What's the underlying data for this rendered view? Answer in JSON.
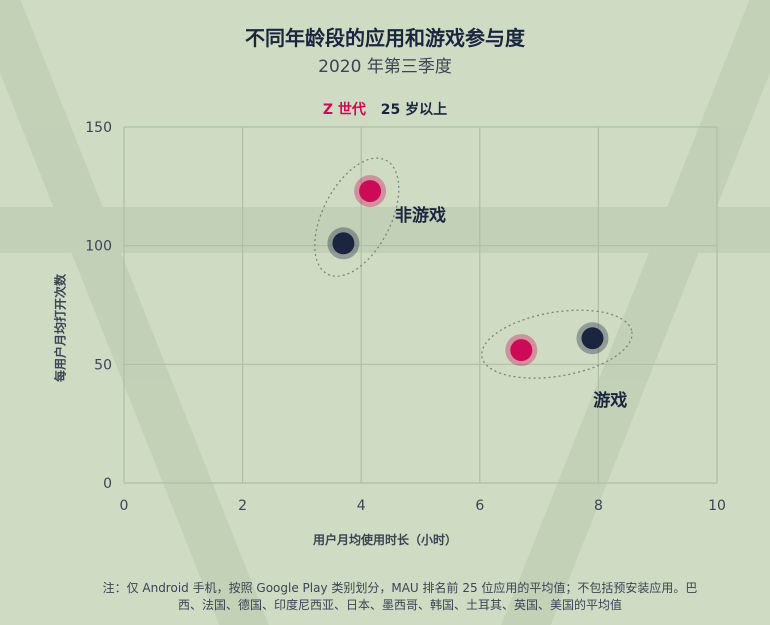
{
  "colors": {
    "background": "#cfdcc3",
    "grid": "#aebfa6",
    "z_gen": "#cc0a55",
    "age25": "#1b2540",
    "text": "#3b4556"
  },
  "chart_data": {
    "type": "scatter",
    "title": "不同年龄段的应用和游戏参与度",
    "subtitle": "2020 年第三季度",
    "xlabel": "用户月均使用时长（小时）",
    "ylabel": "每用户月均打开次数",
    "xlim": [
      0,
      10
    ],
    "ylim": [
      0,
      150
    ],
    "x_ticks": [
      "0",
      "2",
      "4",
      "6",
      "8",
      "10"
    ],
    "y_ticks": [
      "0",
      "50",
      "100",
      "150"
    ],
    "grid": true,
    "legend_position": "top-center",
    "series": [
      {
        "name": "Z 世代",
        "color": "#cc0a55",
        "points": [
          {
            "x": 4.15,
            "y": 123
          },
          {
            "x": 6.7,
            "y": 56
          }
        ]
      },
      {
        "name": "25 岁以上",
        "color": "#1b2540",
        "points": [
          {
            "x": 3.7,
            "y": 101
          },
          {
            "x": 7.9,
            "y": 61
          }
        ]
      }
    ],
    "annotations": [
      {
        "label": "非游戏",
        "x": 5.0,
        "y": 113
      },
      {
        "label": "游戏",
        "x": 8.2,
        "y": 35
      }
    ]
  },
  "footnote": "注：仅 Android 手机，按照 Google Play 类别划分，MAU 排名前 25 位应用的平均值；不包括预安装应用。巴西、法国、德国、印度尼西亚、日本、墨西哥、韩国、土耳其、英国、美国的平均值"
}
